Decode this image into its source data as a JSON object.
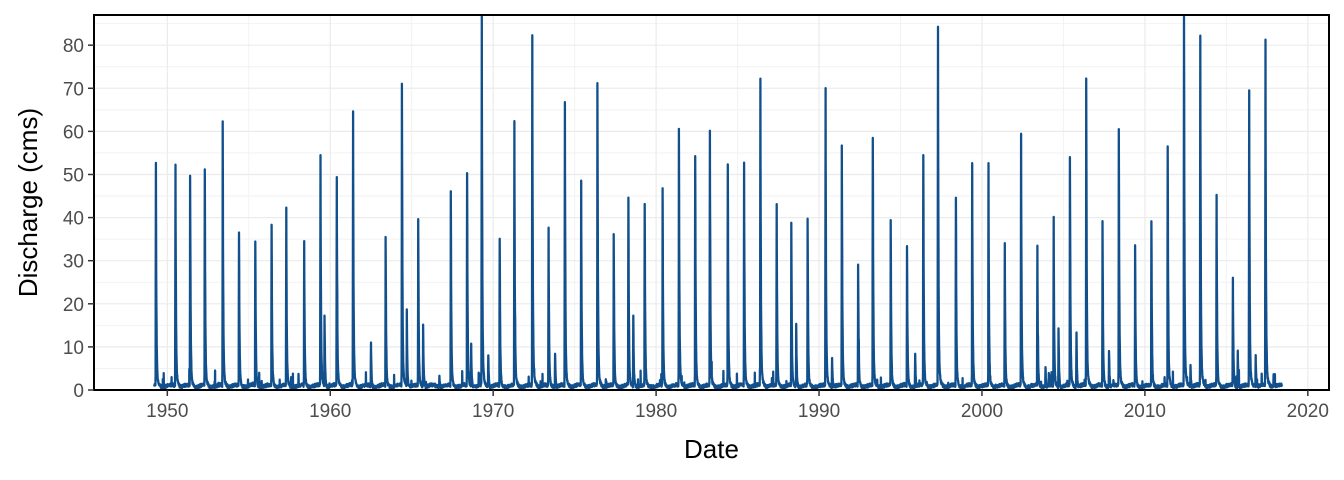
{
  "chart_data": {
    "type": "line",
    "xlabel": "Date",
    "ylabel": "Discharge (cms)",
    "x_unit": "year",
    "xlim": [
      1945.5,
      2021.3
    ],
    "ylim": [
      0,
      87
    ],
    "x_ticks": [
      1950,
      1960,
      1970,
      1980,
      1990,
      2000,
      2010,
      2020
    ],
    "y_ticks": [
      0,
      10,
      20,
      30,
      40,
      50,
      60,
      70,
      80
    ],
    "grid": true,
    "legend": "none",
    "series_color": "#11508c",
    "series": [
      {
        "peaks": [
          [
            1949.3,
            49
          ],
          [
            1950.5,
            52
          ],
          [
            1951.4,
            49
          ],
          [
            1952.3,
            51
          ],
          [
            1953.4,
            62
          ],
          [
            1954.4,
            36
          ],
          [
            1955.4,
            34
          ],
          [
            1956.4,
            38
          ],
          [
            1957.3,
            42
          ],
          [
            1958.4,
            34
          ],
          [
            1959.4,
            54
          ],
          [
            1959.65,
            17
          ],
          [
            1960.4,
            49
          ],
          [
            1961.4,
            64
          ],
          [
            1962.5,
            11
          ],
          [
            1963.4,
            35
          ],
          [
            1964.4,
            71
          ],
          [
            1964.7,
            18
          ],
          [
            1965.4,
            39
          ],
          [
            1965.7,
            15
          ],
          [
            1966.7,
            3
          ],
          [
            1967.4,
            46
          ],
          [
            1968.4,
            50
          ],
          [
            1968.65,
            10
          ],
          [
            1969.3,
            87
          ],
          [
            1969.7,
            8
          ],
          [
            1970.4,
            35
          ],
          [
            1971.3,
            62
          ],
          [
            1972.4,
            82
          ],
          [
            1973.4,
            37
          ],
          [
            1973.8,
            8
          ],
          [
            1974.4,
            66
          ],
          [
            1975.4,
            48
          ],
          [
            1976.4,
            71
          ],
          [
            1977.4,
            36
          ],
          [
            1978.3,
            44
          ],
          [
            1978.6,
            17
          ],
          [
            1979.3,
            43
          ],
          [
            1980.4,
            46
          ],
          [
            1981.4,
            60
          ],
          [
            1982.4,
            54
          ],
          [
            1983.3,
            60
          ],
          [
            1984.4,
            52
          ],
          [
            1985.4,
            52
          ],
          [
            1986.4,
            72
          ],
          [
            1987.4,
            43
          ],
          [
            1988.3,
            38
          ],
          [
            1988.6,
            15
          ],
          [
            1989.3,
            39
          ],
          [
            1990.4,
            70
          ],
          [
            1990.8,
            7
          ],
          [
            1991.4,
            56
          ],
          [
            1992.4,
            29
          ],
          [
            1993.3,
            58
          ],
          [
            1994.4,
            39
          ],
          [
            1995.4,
            33
          ],
          [
            1995.9,
            8
          ],
          [
            1996.4,
            54
          ],
          [
            1997.3,
            84
          ],
          [
            1998.4,
            44
          ],
          [
            1999.4,
            52
          ],
          [
            2000.4,
            52
          ],
          [
            2001.4,
            34
          ],
          [
            2002.4,
            59
          ],
          [
            2003.4,
            33
          ],
          [
            2003.9,
            5
          ],
          [
            2004.4,
            40
          ],
          [
            2004.7,
            14
          ],
          [
            2005.4,
            54
          ],
          [
            2005.8,
            13
          ],
          [
            2006.4,
            72
          ],
          [
            2007.4,
            39
          ],
          [
            2007.8,
            9
          ],
          [
            2008.4,
            60
          ],
          [
            2009.4,
            33
          ],
          [
            2010.4,
            39
          ],
          [
            2011.4,
            56
          ],
          [
            2012.4,
            86
          ],
          [
            2012.8,
            5
          ],
          [
            2013.4,
            82
          ],
          [
            2014.4,
            45
          ],
          [
            2015.4,
            26
          ],
          [
            2015.7,
            9
          ],
          [
            2016.4,
            69
          ],
          [
            2016.8,
            8
          ],
          [
            2017.4,
            81
          ],
          [
            2017.9,
            3
          ]
        ]
      }
    ]
  }
}
